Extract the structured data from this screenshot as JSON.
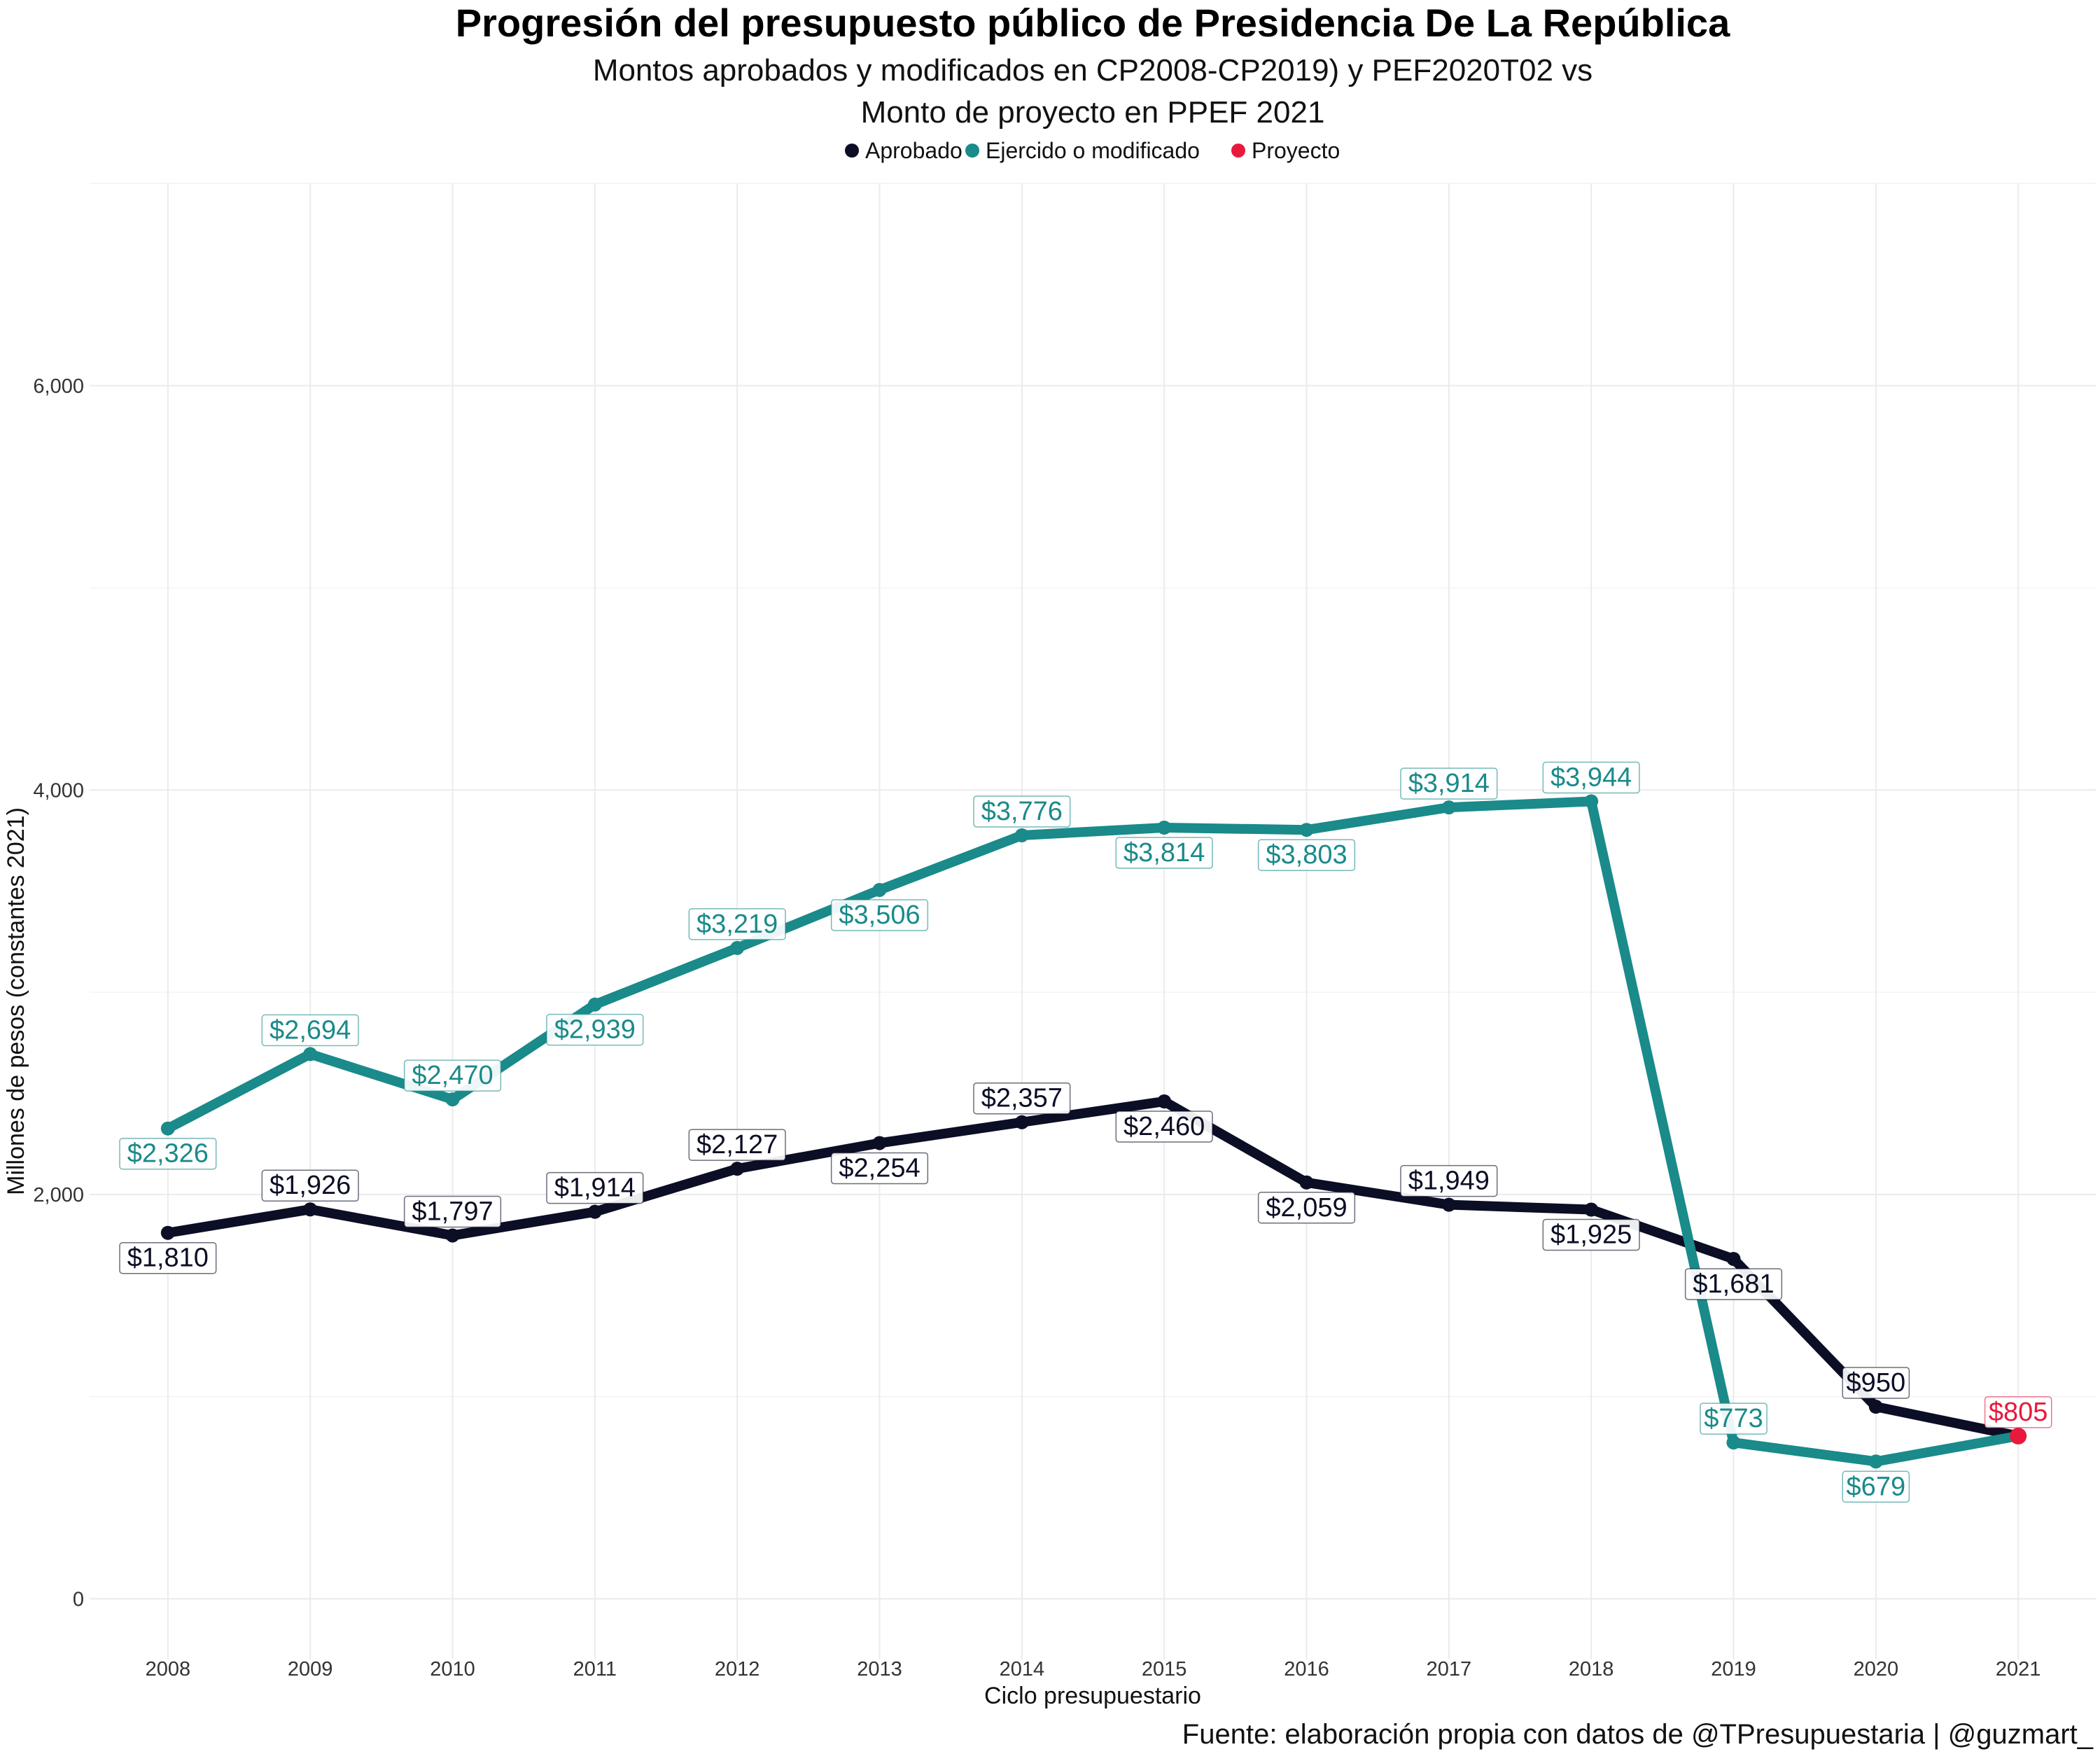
{
  "chart_data": {
    "type": "line",
    "title": "Progresión del presupuesto público de Presidencia De La República",
    "subtitle_lines": [
      "Montos aprobados y modificados en CP2008-CP2019) y PEF2020T02 vs",
      "Monto de proyecto en PPEF 2021"
    ],
    "xlabel": "Ciclo presupuestario",
    "ylabel": "Millones de pesos (constantes 2021)",
    "caption": "Fuente: elaboración propia con datos de @TPresupuestaria | @guzmart_",
    "ylim": [
      -300,
      7000
    ],
    "yticks": [
      0,
      2000,
      4000,
      6000
    ],
    "ytick_labels": [
      "0",
      "2,000",
      "4,000",
      "6,000"
    ],
    "grid": true,
    "legend_position": "top",
    "x": [
      2008,
      2009,
      2010,
      2011,
      2012,
      2013,
      2014,
      2015,
      2016,
      2017,
      2018,
      2019,
      2020,
      2021
    ],
    "series": [
      {
        "name": "Aprobado",
        "color": "#0b0e24",
        "x": [
          2008,
          2009,
          2010,
          2011,
          2012,
          2013,
          2014,
          2015,
          2016,
          2017,
          2018,
          2019,
          2020,
          2021
        ],
        "values": [
          1810,
          1926,
          1797,
          1914,
          2127,
          2254,
          2357,
          2460,
          2059,
          1949,
          1925,
          1681,
          950,
          805
        ],
        "labels": [
          "$1,810",
          "$1,926",
          "$1,797",
          "$1,914",
          "$2,127",
          "$2,254",
          "$2,357",
          "$2,460",
          "$2,059",
          "$1,949",
          "$1,925",
          "$1,681",
          "$950",
          ""
        ],
        "label_pos": [
          "below",
          "above",
          "above",
          "above",
          "above",
          "below",
          "above",
          "below",
          "below",
          "above",
          "below",
          "below",
          "above",
          "none"
        ]
      },
      {
        "name": "Ejercido o modificado",
        "color": "#1a8a8a",
        "x": [
          2008,
          2009,
          2010,
          2011,
          2012,
          2013,
          2014,
          2015,
          2016,
          2017,
          2018,
          2019,
          2020,
          2021
        ],
        "values": [
          2326,
          2694,
          2470,
          2939,
          3219,
          3506,
          3776,
          3814,
          3803,
          3914,
          3944,
          773,
          679,
          805
        ],
        "labels": [
          "$2,326",
          "$2,694",
          "$2,470",
          "$2,939",
          "$3,219",
          "$3,506",
          "$3,776",
          "$3,814",
          "$3,803",
          "$3,914",
          "$3,944",
          "$773",
          "$679",
          ""
        ],
        "label_pos": [
          "below",
          "above",
          "above",
          "below",
          "above",
          "below",
          "above",
          "below",
          "below",
          "above",
          "above",
          "above",
          "below",
          "none"
        ]
      },
      {
        "name": "Proyecto",
        "color": "#e8193c",
        "x": [
          2021
        ],
        "values": [
          805
        ],
        "labels": [
          "$805"
        ],
        "label_pos": [
          "above"
        ]
      }
    ]
  }
}
